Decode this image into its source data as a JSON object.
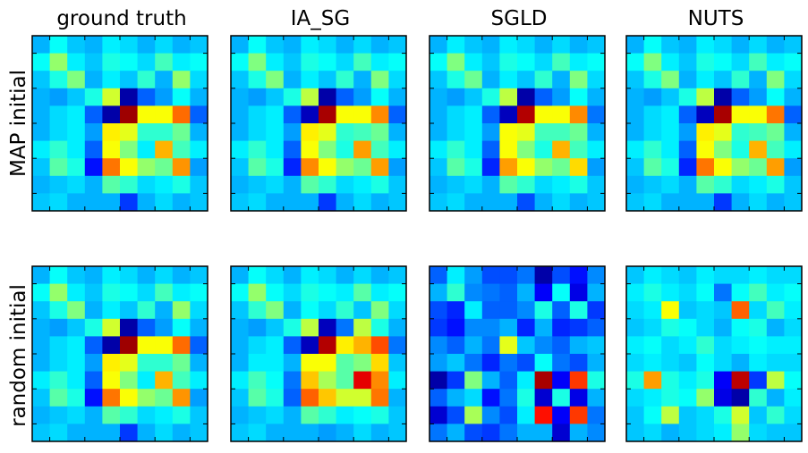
{
  "chart_data": {
    "type": "heatmap",
    "grid_size": 10,
    "colormap": "jet",
    "value_range": [
      0,
      1
    ],
    "column_titles": [
      "ground truth",
      "IA_SG",
      "SGLD",
      "NUTS"
    ],
    "row_labels": [
      "MAP initial",
      "random initial"
    ],
    "panels": [
      {
        "row": "MAP initial",
        "column": "ground truth",
        "matrix": [
          [
            0.3,
            0.38,
            0.32,
            0.3,
            0.36,
            0.34,
            0.3,
            0.34,
            0.3,
            0.32
          ],
          [
            0.38,
            0.52,
            0.36,
            0.32,
            0.4,
            0.38,
            0.34,
            0.44,
            0.36,
            0.38
          ],
          [
            0.32,
            0.4,
            0.5,
            0.3,
            0.36,
            0.32,
            0.42,
            0.3,
            0.52,
            0.34
          ],
          [
            0.3,
            0.28,
            0.32,
            0.4,
            0.58,
            0.04,
            0.22,
            0.28,
            0.38,
            0.3
          ],
          [
            0.3,
            0.34,
            0.36,
            0.22,
            0.04,
            0.97,
            0.62,
            0.62,
            0.77,
            0.22
          ],
          [
            0.3,
            0.34,
            0.36,
            0.28,
            0.64,
            0.6,
            0.42,
            0.42,
            0.48,
            0.3
          ],
          [
            0.36,
            0.42,
            0.36,
            0.22,
            0.62,
            0.5,
            0.36,
            0.7,
            0.44,
            0.36
          ],
          [
            0.32,
            0.46,
            0.4,
            0.14,
            0.76,
            0.62,
            0.52,
            0.48,
            0.73,
            0.28
          ],
          [
            0.3,
            0.32,
            0.34,
            0.3,
            0.46,
            0.42,
            0.34,
            0.36,
            0.4,
            0.32
          ],
          [
            0.32,
            0.34,
            0.3,
            0.3,
            0.3,
            0.18,
            0.3,
            0.34,
            0.3,
            0.32
          ]
        ]
      },
      {
        "row": "MAP initial",
        "column": "IA_SG",
        "matrix": [
          [
            0.3,
            0.38,
            0.32,
            0.3,
            0.36,
            0.34,
            0.3,
            0.34,
            0.3,
            0.32
          ],
          [
            0.38,
            0.5,
            0.36,
            0.32,
            0.4,
            0.38,
            0.34,
            0.44,
            0.36,
            0.38
          ],
          [
            0.32,
            0.4,
            0.5,
            0.3,
            0.36,
            0.32,
            0.42,
            0.3,
            0.5,
            0.34
          ],
          [
            0.3,
            0.28,
            0.32,
            0.4,
            0.56,
            0.04,
            0.22,
            0.28,
            0.38,
            0.3
          ],
          [
            0.3,
            0.34,
            0.36,
            0.22,
            0.06,
            0.96,
            0.62,
            0.62,
            0.74,
            0.22
          ],
          [
            0.3,
            0.34,
            0.36,
            0.28,
            0.64,
            0.6,
            0.42,
            0.44,
            0.48,
            0.3
          ],
          [
            0.36,
            0.42,
            0.36,
            0.22,
            0.62,
            0.5,
            0.4,
            0.72,
            0.44,
            0.36
          ],
          [
            0.32,
            0.46,
            0.4,
            0.16,
            0.74,
            0.62,
            0.52,
            0.48,
            0.72,
            0.28
          ],
          [
            0.3,
            0.32,
            0.34,
            0.3,
            0.46,
            0.42,
            0.34,
            0.36,
            0.4,
            0.32
          ],
          [
            0.32,
            0.34,
            0.3,
            0.3,
            0.3,
            0.18,
            0.3,
            0.34,
            0.3,
            0.32
          ]
        ]
      },
      {
        "row": "MAP initial",
        "column": "SGLD",
        "matrix": [
          [
            0.3,
            0.36,
            0.32,
            0.3,
            0.36,
            0.34,
            0.3,
            0.34,
            0.3,
            0.32
          ],
          [
            0.38,
            0.5,
            0.36,
            0.32,
            0.4,
            0.38,
            0.34,
            0.44,
            0.36,
            0.38
          ],
          [
            0.32,
            0.4,
            0.48,
            0.3,
            0.36,
            0.32,
            0.42,
            0.3,
            0.5,
            0.34
          ],
          [
            0.3,
            0.28,
            0.32,
            0.4,
            0.56,
            0.04,
            0.22,
            0.28,
            0.38,
            0.3
          ],
          [
            0.3,
            0.34,
            0.36,
            0.22,
            0.06,
            0.95,
            0.62,
            0.62,
            0.74,
            0.24
          ],
          [
            0.3,
            0.34,
            0.36,
            0.28,
            0.62,
            0.6,
            0.44,
            0.44,
            0.48,
            0.3
          ],
          [
            0.36,
            0.42,
            0.36,
            0.22,
            0.62,
            0.5,
            0.4,
            0.7,
            0.44,
            0.36
          ],
          [
            0.32,
            0.46,
            0.4,
            0.16,
            0.72,
            0.62,
            0.52,
            0.48,
            0.66,
            0.28
          ],
          [
            0.3,
            0.32,
            0.34,
            0.3,
            0.46,
            0.42,
            0.34,
            0.36,
            0.4,
            0.32
          ],
          [
            0.32,
            0.34,
            0.3,
            0.3,
            0.3,
            0.2,
            0.3,
            0.34,
            0.3,
            0.32
          ]
        ]
      },
      {
        "row": "MAP initial",
        "column": "NUTS",
        "matrix": [
          [
            0.3,
            0.38,
            0.32,
            0.3,
            0.36,
            0.34,
            0.3,
            0.34,
            0.3,
            0.32
          ],
          [
            0.38,
            0.5,
            0.36,
            0.32,
            0.4,
            0.38,
            0.34,
            0.44,
            0.36,
            0.38
          ],
          [
            0.32,
            0.4,
            0.5,
            0.3,
            0.36,
            0.32,
            0.42,
            0.3,
            0.5,
            0.34
          ],
          [
            0.3,
            0.28,
            0.32,
            0.4,
            0.56,
            0.04,
            0.22,
            0.28,
            0.38,
            0.3
          ],
          [
            0.3,
            0.34,
            0.36,
            0.22,
            0.06,
            0.96,
            0.62,
            0.62,
            0.76,
            0.22
          ],
          [
            0.3,
            0.34,
            0.36,
            0.28,
            0.64,
            0.6,
            0.42,
            0.44,
            0.48,
            0.3
          ],
          [
            0.36,
            0.42,
            0.36,
            0.22,
            0.62,
            0.5,
            0.4,
            0.7,
            0.44,
            0.36
          ],
          [
            0.32,
            0.46,
            0.4,
            0.16,
            0.76,
            0.62,
            0.52,
            0.48,
            0.72,
            0.28
          ],
          [
            0.3,
            0.32,
            0.34,
            0.3,
            0.46,
            0.42,
            0.34,
            0.36,
            0.4,
            0.32
          ],
          [
            0.32,
            0.34,
            0.3,
            0.3,
            0.3,
            0.18,
            0.3,
            0.34,
            0.3,
            0.32
          ]
        ]
      },
      {
        "row": "random initial",
        "column": "ground truth",
        "matrix": [
          [
            0.3,
            0.38,
            0.32,
            0.3,
            0.36,
            0.34,
            0.3,
            0.34,
            0.3,
            0.32
          ],
          [
            0.38,
            0.52,
            0.36,
            0.32,
            0.4,
            0.38,
            0.34,
            0.44,
            0.36,
            0.38
          ],
          [
            0.32,
            0.4,
            0.5,
            0.3,
            0.36,
            0.32,
            0.42,
            0.3,
            0.52,
            0.34
          ],
          [
            0.3,
            0.28,
            0.32,
            0.4,
            0.58,
            0.04,
            0.22,
            0.28,
            0.38,
            0.3
          ],
          [
            0.3,
            0.34,
            0.36,
            0.22,
            0.04,
            0.97,
            0.62,
            0.62,
            0.77,
            0.22
          ],
          [
            0.3,
            0.34,
            0.36,
            0.28,
            0.64,
            0.6,
            0.42,
            0.42,
            0.48,
            0.3
          ],
          [
            0.36,
            0.42,
            0.36,
            0.22,
            0.62,
            0.5,
            0.36,
            0.7,
            0.44,
            0.36
          ],
          [
            0.32,
            0.46,
            0.4,
            0.14,
            0.76,
            0.62,
            0.52,
            0.48,
            0.73,
            0.28
          ],
          [
            0.3,
            0.32,
            0.34,
            0.3,
            0.46,
            0.42,
            0.34,
            0.36,
            0.4,
            0.32
          ],
          [
            0.32,
            0.34,
            0.3,
            0.3,
            0.3,
            0.18,
            0.3,
            0.34,
            0.3,
            0.32
          ]
        ]
      },
      {
        "row": "random initial",
        "column": "IA_SG",
        "matrix": [
          [
            0.3,
            0.38,
            0.34,
            0.3,
            0.36,
            0.34,
            0.3,
            0.34,
            0.3,
            0.32
          ],
          [
            0.38,
            0.52,
            0.38,
            0.34,
            0.4,
            0.38,
            0.36,
            0.46,
            0.36,
            0.38
          ],
          [
            0.32,
            0.42,
            0.5,
            0.3,
            0.38,
            0.34,
            0.42,
            0.32,
            0.5,
            0.34
          ],
          [
            0.3,
            0.28,
            0.32,
            0.4,
            0.56,
            0.06,
            0.24,
            0.56,
            0.4,
            0.3
          ],
          [
            0.3,
            0.34,
            0.36,
            0.22,
            0.06,
            0.95,
            0.64,
            0.7,
            0.8,
            0.24
          ],
          [
            0.3,
            0.36,
            0.36,
            0.3,
            0.62,
            0.62,
            0.46,
            0.5,
            0.66,
            0.32
          ],
          [
            0.36,
            0.44,
            0.38,
            0.24,
            0.68,
            0.54,
            0.46,
            0.9,
            0.74,
            0.36
          ],
          [
            0.32,
            0.46,
            0.4,
            0.22,
            0.78,
            0.68,
            0.58,
            0.58,
            0.76,
            0.3
          ],
          [
            0.3,
            0.32,
            0.34,
            0.3,
            0.46,
            0.42,
            0.36,
            0.38,
            0.4,
            0.32
          ],
          [
            0.32,
            0.34,
            0.3,
            0.3,
            0.3,
            0.28,
            0.3,
            0.34,
            0.3,
            0.32
          ]
        ]
      },
      {
        "row": "random initial",
        "column": "SGLD",
        "matrix": [
          [
            0.22,
            0.36,
            0.28,
            0.2,
            0.2,
            0.24,
            0.04,
            0.2,
            0.14,
            0.26
          ],
          [
            0.3,
            0.42,
            0.26,
            0.24,
            0.22,
            0.3,
            0.12,
            0.38,
            0.1,
            0.3
          ],
          [
            0.2,
            0.16,
            0.36,
            0.22,
            0.22,
            0.26,
            0.4,
            0.22,
            0.4,
            0.18
          ],
          [
            0.18,
            0.14,
            0.26,
            0.26,
            0.3,
            0.16,
            0.3,
            0.16,
            0.18,
            0.22
          ],
          [
            0.26,
            0.22,
            0.3,
            0.24,
            0.6,
            0.32,
            0.26,
            0.22,
            0.3,
            0.32
          ],
          [
            0.28,
            0.32,
            0.24,
            0.16,
            0.24,
            0.2,
            0.38,
            0.24,
            0.2,
            0.3
          ],
          [
            0.04,
            0.18,
            0.5,
            0.3,
            0.22,
            0.36,
            0.96,
            0.12,
            0.82,
            0.4
          ],
          [
            0.22,
            0.3,
            0.34,
            0.14,
            0.24,
            0.4,
            0.08,
            0.4,
            0.1,
            0.3
          ],
          [
            0.08,
            0.2,
            0.54,
            0.26,
            0.2,
            0.36,
            0.86,
            0.12,
            0.82,
            0.24
          ],
          [
            0.24,
            0.3,
            0.2,
            0.18,
            0.24,
            0.3,
            0.3,
            0.08,
            0.3,
            0.26
          ]
        ]
      },
      {
        "row": "random initial",
        "column": "NUTS",
        "matrix": [
          [
            0.32,
            0.36,
            0.34,
            0.32,
            0.36,
            0.34,
            0.34,
            0.36,
            0.34,
            0.34
          ],
          [
            0.36,
            0.4,
            0.36,
            0.34,
            0.38,
            0.24,
            0.38,
            0.44,
            0.36,
            0.38
          ],
          [
            0.34,
            0.36,
            0.62,
            0.32,
            0.34,
            0.32,
            0.78,
            0.34,
            0.44,
            0.36
          ],
          [
            0.32,
            0.34,
            0.4,
            0.38,
            0.34,
            0.3,
            0.38,
            0.4,
            0.3,
            0.34
          ],
          [
            0.36,
            0.38,
            0.34,
            0.36,
            0.42,
            0.34,
            0.36,
            0.38,
            0.36,
            0.36
          ],
          [
            0.34,
            0.36,
            0.34,
            0.32,
            0.38,
            0.34,
            0.3,
            0.36,
            0.34,
            0.34
          ],
          [
            0.4,
            0.72,
            0.4,
            0.36,
            0.4,
            0.12,
            0.94,
            0.18,
            0.56,
            0.38
          ],
          [
            0.34,
            0.36,
            0.4,
            0.38,
            0.52,
            0.1,
            0.04,
            0.42,
            0.3,
            0.36
          ],
          [
            0.32,
            0.38,
            0.56,
            0.32,
            0.34,
            0.4,
            0.58,
            0.32,
            0.42,
            0.34
          ],
          [
            0.32,
            0.34,
            0.3,
            0.32,
            0.34,
            0.36,
            0.52,
            0.34,
            0.32,
            0.32
          ]
        ]
      }
    ]
  }
}
